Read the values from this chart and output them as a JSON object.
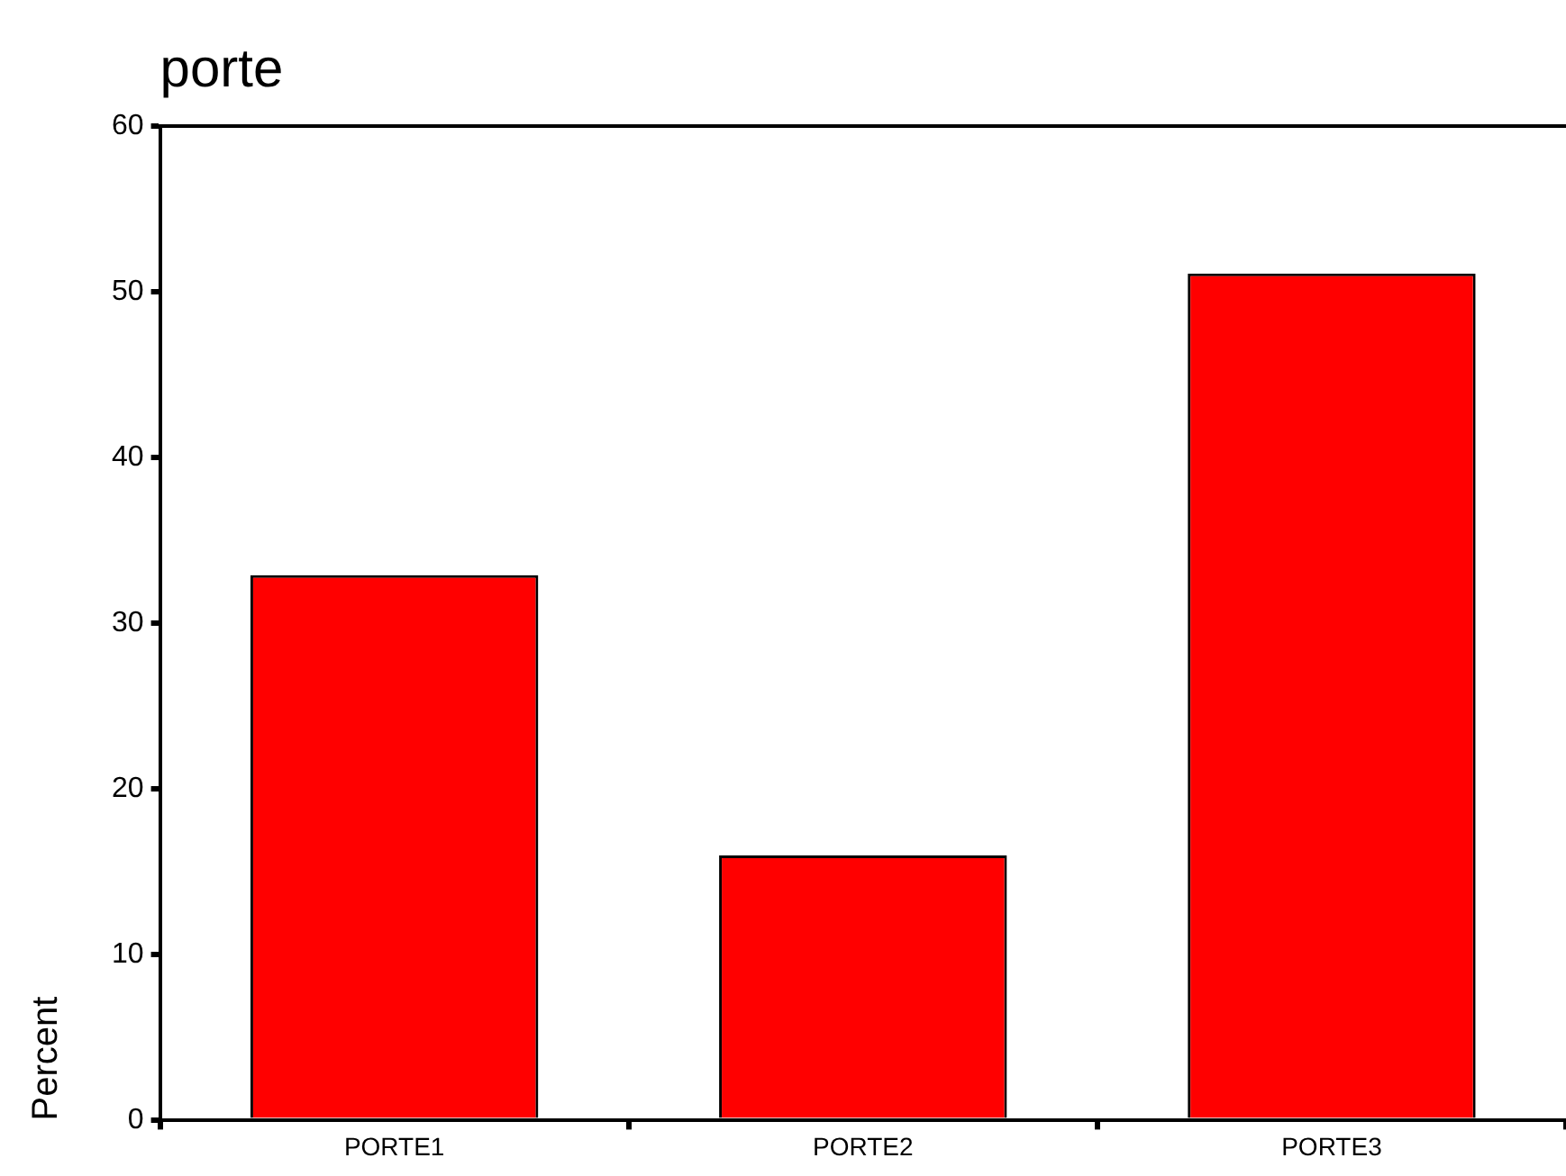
{
  "chart_data": {
    "type": "bar",
    "title": "porte",
    "ylabel": "Percent",
    "categories": [
      "PORTE1",
      "PORTE2",
      "PORTE3"
    ],
    "values": [
      32.9,
      16.0,
      51.1
    ],
    "color": "#ff0000",
    "ylim": [
      0,
      60
    ],
    "yticks": [
      0,
      10,
      20,
      30,
      40,
      50,
      60
    ],
    "grid": false,
    "legend": false
  }
}
